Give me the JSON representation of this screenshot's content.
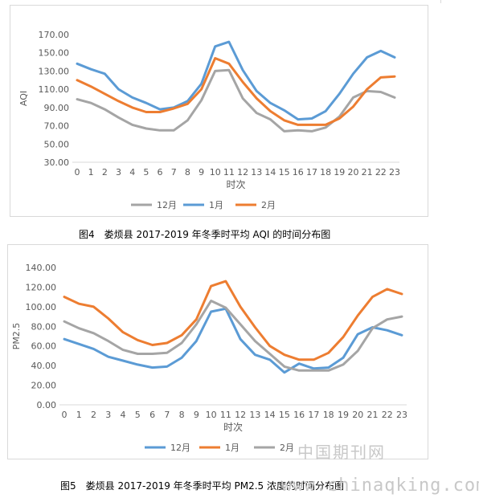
{
  "chart_data": [
    {
      "type": "line",
      "ylabel": "AQI",
      "xlabel": "时次",
      "ylim": [
        30,
        170
      ],
      "y_ticks": [
        "30.00",
        "50.00",
        "70.00",
        "90.00",
        "110.00",
        "130.00",
        "150.00",
        "170.00"
      ],
      "categories": [
        "0",
        "1",
        "2",
        "3",
        "4",
        "5",
        "6",
        "7",
        "8",
        "9",
        "10",
        "11",
        "12",
        "13",
        "14",
        "15",
        "16",
        "17",
        "18",
        "19",
        "20",
        "21",
        "22",
        "23"
      ],
      "legend_position": "bottom",
      "grid": false,
      "series": [
        {
          "name": "12月",
          "color": "#a5a5a5",
          "values": [
            99,
            95,
            88,
            79,
            71,
            67,
            65,
            65,
            76,
            98,
            130,
            131,
            100,
            84,
            77,
            64,
            65,
            64,
            68,
            80,
            101,
            108,
            107,
            101
          ]
        },
        {
          "name": "1月",
          "color": "#5b9bd5",
          "values": [
            138,
            132,
            127,
            110,
            101,
            95,
            88,
            90,
            97,
            116,
            157,
            162,
            131,
            108,
            95,
            87,
            77,
            78,
            86,
            105,
            127,
            145,
            152,
            145
          ]
        },
        {
          "name": "2月",
          "color": "#ed7d31",
          "values": [
            120,
            113,
            105,
            97,
            90,
            85,
            85,
            89,
            94,
            110,
            144,
            138,
            118,
            100,
            86,
            76,
            71,
            71,
            71,
            78,
            91,
            110,
            123,
            124
          ]
        }
      ]
    },
    {
      "type": "line",
      "ylabel": "PM2.5",
      "xlabel": "时次",
      "ylim": [
        0,
        140
      ],
      "y_ticks": [
        "0.00",
        "20.00",
        "40.00",
        "60.00",
        "80.00",
        "100.00",
        "120.00",
        "140.00"
      ],
      "categories": [
        "0",
        "1",
        "2",
        "3",
        "4",
        "5",
        "6",
        "7",
        "8",
        "9",
        "10",
        "11",
        "12",
        "13",
        "14",
        "15",
        "16",
        "17",
        "18",
        "19",
        "20",
        "21",
        "22",
        "23"
      ],
      "legend_position": "bottom",
      "grid": false,
      "series": [
        {
          "name": "12月",
          "color": "#5b9bd5",
          "values": [
            67,
            62,
            57,
            49,
            45,
            41,
            38,
            39,
            48,
            65,
            95,
            98,
            67,
            51,
            46,
            33,
            42,
            37,
            38,
            48,
            72,
            79,
            76,
            71
          ]
        },
        {
          "name": "1月",
          "color": "#ed7d31",
          "values": [
            110,
            103,
            100,
            88,
            74,
            66,
            61,
            63,
            71,
            87,
            121,
            126,
            100,
            79,
            60,
            51,
            46,
            46,
            53,
            69,
            91,
            110,
            118,
            113
          ]
        },
        {
          "name": "2月",
          "color": "#a5a5a5",
          "values": [
            85,
            78,
            73,
            65,
            56,
            52,
            52,
            53,
            63,
            82,
            106,
            99,
            82,
            65,
            52,
            39,
            35,
            35,
            35,
            41,
            55,
            78,
            87,
            90
          ]
        }
      ]
    }
  ],
  "captions": {
    "fig4": "图4　娄烦县 2017-2019 年冬季时平均 AQI 的时间分布图",
    "fig5": "图5　娄烦县 2017-2019 年冬季时平均 PM2.5 浓度的时间分布图"
  },
  "watermark": {
    "cn": "中国期刊网",
    "url": "www.chinaqking.com"
  }
}
